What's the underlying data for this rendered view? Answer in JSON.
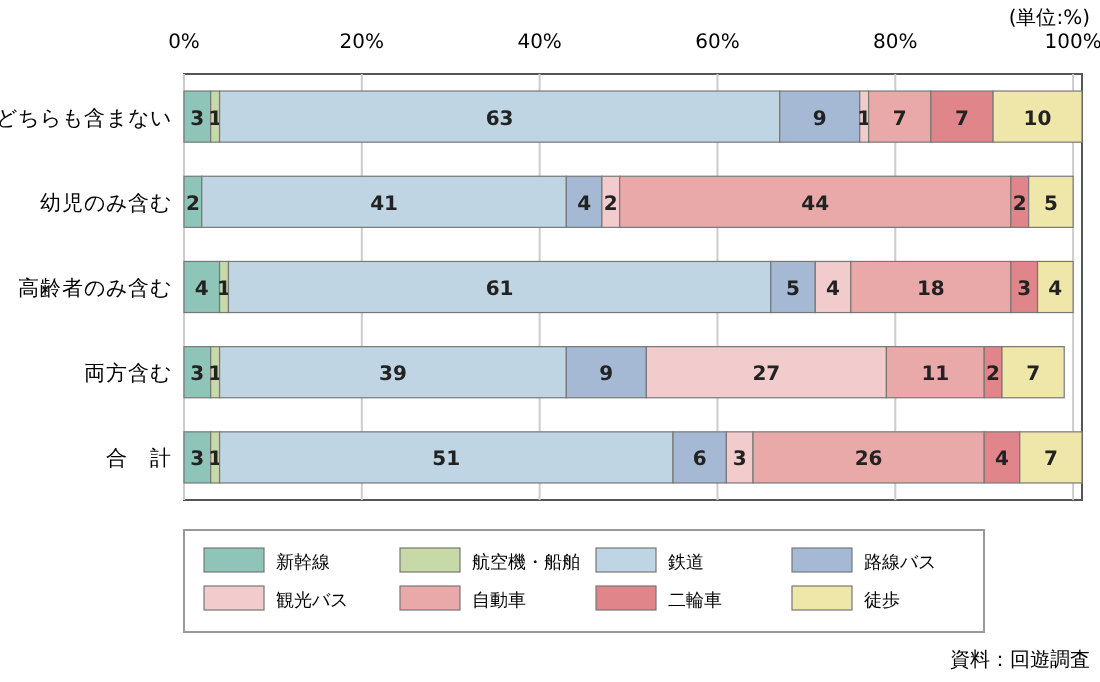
{
  "chart_data": {
    "type": "bar",
    "orientation": "horizontal",
    "stacked": true,
    "data_labels": true,
    "grid": "x",
    "legend": "bottom",
    "categories": [
      "どちらも含まない",
      "幼児のみ含む",
      "高齢者のみ含む",
      "両方含む",
      "合　計"
    ],
    "xlim": [
      0,
      101
    ],
    "xticks": [
      {
        "value": 0,
        "label": "0%"
      },
      {
        "value": 20,
        "label": "20%"
      },
      {
        "value": 40,
        "label": "40%"
      },
      {
        "value": 60,
        "label": "60%"
      },
      {
        "value": 80,
        "label": "80%"
      },
      {
        "value": 100,
        "label": "100%"
      }
    ],
    "series": [
      {
        "name": "新幹線",
        "color": "#8fc4b8",
        "values": [
          3,
          2,
          4,
          3,
          3
        ]
      },
      {
        "name": "航空機・船舶",
        "color": "#c8d9a8",
        "values": [
          1,
          null,
          1,
          1,
          1
        ]
      },
      {
        "name": "鉄道",
        "color": "#bfd5e3",
        "values": [
          63,
          41,
          61,
          39,
          51
        ]
      },
      {
        "name": "路線バス",
        "color": "#a6b9d4",
        "values": [
          9,
          4,
          5,
          9,
          6
        ]
      },
      {
        "name": "観光バス",
        "color": "#f2cccc",
        "values": [
          1,
          2,
          4,
          27,
          3
        ]
      },
      {
        "name": "自動車",
        "color": "#eaa9a9",
        "values": [
          7,
          44,
          18,
          11,
          26
        ]
      },
      {
        "name": "二輪車",
        "color": "#e08589",
        "values": [
          7,
          2,
          3,
          2,
          4
        ]
      },
      {
        "name": "徒歩",
        "color": "#efe6a9",
        "values": [
          10,
          5,
          4,
          7,
          7
        ]
      }
    ],
    "annotations": [
      "(単位:%)",
      "資料：回遊調査"
    ]
  }
}
